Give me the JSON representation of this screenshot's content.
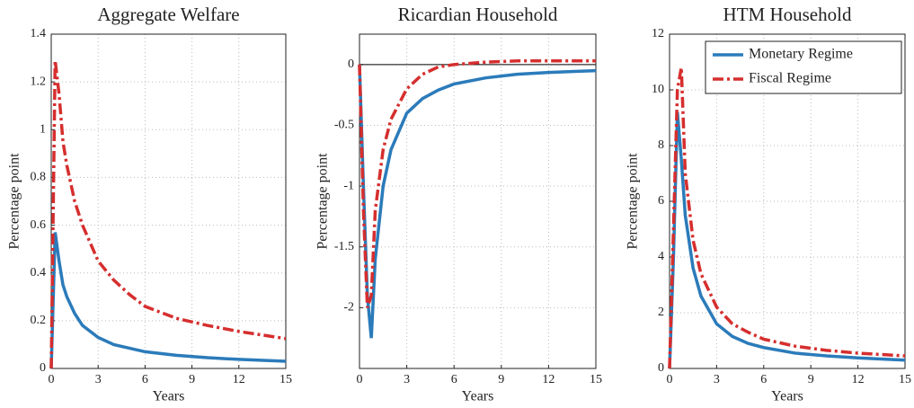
{
  "chart_data": [
    {
      "type": "line",
      "title": "Aggregate Welfare",
      "xlabel": "Years",
      "ylabel": "Percentage point",
      "x": [
        0,
        0.25,
        0.5,
        0.75,
        1,
        1.5,
        2,
        3,
        4,
        5,
        6,
        8,
        10,
        12,
        15
      ],
      "series": [
        {
          "color": "#2b7bba",
          "style": "solid",
          "values": [
            0,
            0.57,
            0.45,
            0.35,
            0.3,
            0.23,
            0.18,
            0.13,
            0.1,
            0.085,
            0.07,
            0.055,
            0.045,
            0.038,
            0.03
          ]
        },
        {
          "color": "#d62e2e",
          "style": "dashdot",
          "values": [
            0,
            1.29,
            1.15,
            0.95,
            0.85,
            0.7,
            0.6,
            0.45,
            0.37,
            0.31,
            0.26,
            0.21,
            0.18,
            0.155,
            0.125
          ]
        }
      ],
      "xlim": [
        0,
        15
      ],
      "xticks": [
        0,
        3,
        6,
        9,
        12,
        15
      ],
      "ylim": [
        0,
        1.4
      ],
      "yticks": [
        0,
        0.2,
        0.4,
        0.6,
        0.8,
        1,
        1.2,
        1.4
      ],
      "grid": true
    },
    {
      "type": "line",
      "title": "Ricardian Household",
      "xlabel": "Years",
      "ylabel": "Percentage point",
      "x": [
        0,
        0.25,
        0.5,
        0.75,
        1,
        1.5,
        2,
        3,
        4,
        5,
        6,
        8,
        10,
        12,
        15
      ],
      "series": [
        {
          "color": "#2b7bba",
          "style": "solid",
          "values": [
            0,
            -1.0,
            -1.9,
            -2.25,
            -1.6,
            -1.0,
            -0.7,
            -0.4,
            -0.28,
            -0.21,
            -0.16,
            -0.11,
            -0.08,
            -0.065,
            -0.05
          ]
        },
        {
          "color": "#d62e2e",
          "style": "dashdot",
          "values": [
            0,
            -1.2,
            -2.0,
            -1.9,
            -1.2,
            -0.7,
            -0.45,
            -0.2,
            -0.08,
            -0.02,
            0,
            0.02,
            0.03,
            0.03,
            0.03
          ]
        }
      ],
      "xlim": [
        0,
        15
      ],
      "xticks": [
        0,
        3,
        6,
        9,
        12,
        15
      ],
      "ylim": [
        -2.5,
        0.25
      ],
      "yticks": [
        -2,
        -1.5,
        -1,
        -0.5,
        0
      ],
      "grid": true,
      "zero_line": true
    },
    {
      "type": "line",
      "title": "HTM Household",
      "xlabel": "Years",
      "ylabel": "Percentage point",
      "x": [
        0,
        0.25,
        0.5,
        0.75,
        1,
        1.5,
        2,
        3,
        4,
        5,
        6,
        8,
        10,
        12,
        15
      ],
      "series": [
        {
          "name": "Monetary Regime",
          "color": "#2b7bba",
          "style": "solid",
          "values": [
            0,
            4,
            9.2,
            7.5,
            5.5,
            3.6,
            2.6,
            1.6,
            1.15,
            0.9,
            0.75,
            0.55,
            0.45,
            0.38,
            0.3
          ]
        },
        {
          "name": "Fiscal Regime",
          "color": "#d62e2e",
          "style": "dashdot",
          "values": [
            0,
            5,
            10,
            10.8,
            7,
            4.6,
            3.4,
            2.2,
            1.6,
            1.3,
            1.05,
            0.8,
            0.65,
            0.55,
            0.45
          ]
        }
      ],
      "xlim": [
        0,
        15
      ],
      "xticks": [
        0,
        3,
        6,
        9,
        12,
        15
      ],
      "ylim": [
        0,
        12
      ],
      "yticks": [
        0,
        2,
        4,
        6,
        8,
        10,
        12
      ],
      "grid": true,
      "legend": "upper right"
    }
  ]
}
